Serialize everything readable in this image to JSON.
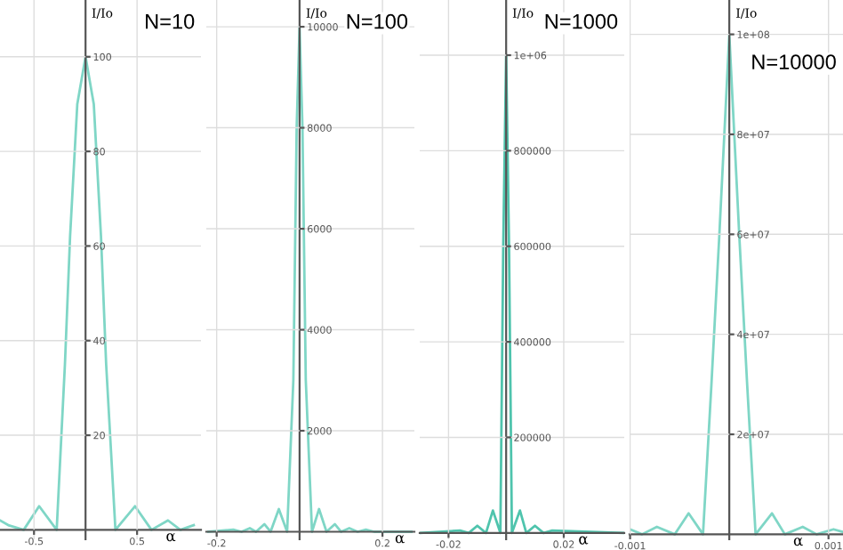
{
  "chart_data": [
    {
      "type": "line",
      "xlabel": "α",
      "ylabel": "I/Io",
      "annotations": [
        "N=10"
      ],
      "grid": true,
      "xlim": [
        -0.83,
        1.12
      ],
      "ylim": [
        -2,
        112
      ],
      "xticks": [
        -0.5,
        0.5
      ],
      "yticks": [
        20,
        40,
        60,
        80,
        100
      ],
      "series": [
        {
          "color": "#7fd6c6",
          "x": [
            -0.83,
            -0.75,
            -0.6,
            -0.45,
            -0.28,
            -0.2,
            -0.15,
            -0.08,
            0,
            0.08,
            0.15,
            0.2,
            0.29,
            0.48,
            0.64,
            0.8,
            0.92,
            1.05
          ],
          "values": [
            2,
            1,
            0,
            5,
            0,
            35,
            62,
            90,
            100,
            90,
            62,
            35,
            0,
            5,
            0,
            2,
            0,
            1
          ]
        }
      ]
    },
    {
      "type": "line",
      "xlabel": "α",
      "ylabel": "I/Io",
      "annotations": [
        "N=100"
      ],
      "grid": true,
      "xlim": [
        -0.225,
        0.277
      ],
      "ylim": [
        -150,
        10530
      ],
      "xticks": [
        -0.2,
        0.2
      ],
      "yticks": [
        2000,
        4000,
        6000,
        8000,
        10000
      ],
      "series": [
        {
          "color": "#7fd6c6",
          "x": [
            -0.22,
            -0.16,
            -0.14,
            -0.12,
            -0.105,
            -0.085,
            -0.07,
            -0.05,
            -0.03,
            -0.015,
            -0.007,
            0,
            0.007,
            0.015,
            0.03,
            0.047,
            0.065,
            0.085,
            0.1,
            0.12,
            0.14,
            0.16,
            0.18,
            0.27
          ],
          "values": [
            0,
            40,
            0,
            70,
            0,
            150,
            0,
            450,
            0,
            3000,
            8000,
            10000,
            8000,
            3000,
            0,
            450,
            0,
            150,
            0,
            70,
            0,
            40,
            0,
            0
          ]
        }
      ]
    },
    {
      "type": "line",
      "xlabel": "α",
      "ylabel": "I/Io",
      "annotations": [
        "N=1000"
      ],
      "grid": true,
      "xlim": [
        -0.03,
        0.041
      ],
      "ylim": [
        -13400,
        1115500
      ],
      "xticks": [
        -0.02,
        0.02
      ],
      "yticks": [
        200000,
        400000,
        600000,
        800000,
        {
          "value": 1000000,
          "label": "1e+06"
        }
      ],
      "series": [
        {
          "color": "#4fc4ad",
          "x": [
            -0.03,
            -0.016,
            -0.013,
            -0.01,
            -0.007,
            -0.0046,
            -0.002,
            -0.001,
            0,
            0.001,
            0.002,
            0.0048,
            0.007,
            0.01,
            0.013,
            0.016,
            0.041
          ],
          "values": [
            0,
            5000,
            0,
            15000,
            0,
            47000,
            0,
            600000,
            1000000,
            600000,
            0,
            47000,
            0,
            15000,
            0,
            5000,
            0
          ]
        }
      ]
    },
    {
      "type": "line",
      "xlabel": "α",
      "ylabel": "I/Io",
      "annotations": [
        "N=10000"
      ],
      "grid": true,
      "xlim": [
        -0.001005,
        0.001146
      ],
      "ylim": [
        -1000000,
        106870000
      ],
      "xticks": [
        {
          "value": -0.001,
          "label": "-0.001"
        },
        {
          "value": 0.001,
          "label": "0.001"
        }
      ],
      "yticks": [
        {
          "value": 20000000,
          "label": "2e+07"
        },
        {
          "value": 40000000,
          "label": "4e+07"
        },
        {
          "value": 60000000,
          "label": "6e+07"
        },
        {
          "value": 80000000,
          "label": "8e+07"
        },
        {
          "value": 100000000,
          "label": "1e+08"
        }
      ],
      "series": [
        {
          "color": "#7fd6c6",
          "x": [
            -0.001,
            -0.00088,
            -0.00073,
            -0.00055,
            -0.00041,
            -0.000265,
            -0.00018,
            -0.0001,
            0,
            0.0001,
            0.00018,
            0.000265,
            0.00043,
            0.00056,
            0.00074,
            0.00088,
            0.00105,
            0.00114
          ],
          "values": [
            1000000,
            0,
            1500000,
            0,
            4200000,
            0,
            30000000,
            60000000,
            100000000,
            60000000,
            30000000,
            0,
            4200000,
            0,
            1500000,
            0,
            1000000,
            500000
          ]
        }
      ]
    }
  ]
}
